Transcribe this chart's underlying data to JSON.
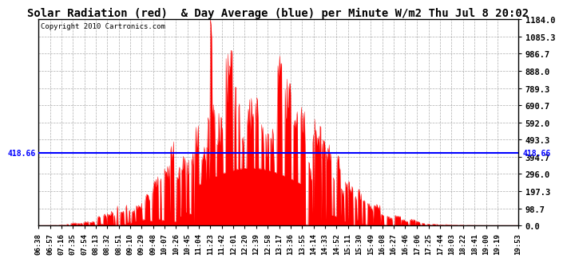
{
  "title": "Solar Radiation (red)  & Day Average (blue) per Minute W/m2 Thu Jul 8 20:02",
  "copyright_text": "Copyright 2010 Cartronics.com",
  "ymax": 1184.0,
  "ymin": 0.0,
  "yticks": [
    0.0,
    98.7,
    197.3,
    296.0,
    394.7,
    493.3,
    592.0,
    690.7,
    789.3,
    888.0,
    986.7,
    1085.3,
    1184.0
  ],
  "day_average": 418.66,
  "bar_color": "#FF0000",
  "avg_line_color": "#0000FF",
  "background_color": "#FFFFFF",
  "grid_color": "#999999",
  "avg_label": "418.66",
  "xtick_labels": [
    "06:38",
    "06:57",
    "07:16",
    "07:35",
    "07:54",
    "08:13",
    "08:32",
    "08:51",
    "09:10",
    "09:29",
    "09:48",
    "10:07",
    "10:26",
    "10:45",
    "11:04",
    "11:23",
    "11:42",
    "12:01",
    "12:20",
    "12:39",
    "12:58",
    "13:17",
    "13:36",
    "13:55",
    "14:14",
    "14:33",
    "14:52",
    "15:11",
    "15:30",
    "15:49",
    "16:08",
    "16:27",
    "16:46",
    "17:06",
    "17:25",
    "17:44",
    "18:03",
    "18:22",
    "18:41",
    "19:00",
    "19:19",
    "19:53"
  ]
}
